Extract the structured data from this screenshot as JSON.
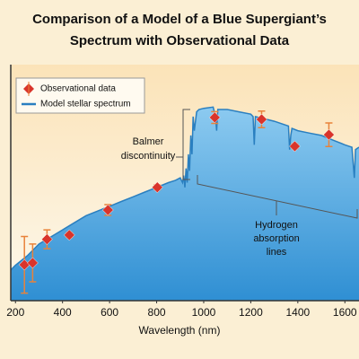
{
  "chart_data": {
    "type": "area",
    "title": [
      "Comparison of a Model of a Blue Supergiant’s",
      "Spectrum with Observational Data"
    ],
    "xlabel": "Wavelength (nm)",
    "xlim": [
      180,
      1660
    ],
    "xticks": [
      200,
      400,
      600,
      800,
      1000,
      1200,
      1400,
      1600
    ],
    "ylim": [
      0,
      100
    ],
    "series": [
      {
        "name": "Observational data",
        "type": "scatter",
        "color": "#d9342b",
        "error_color": "#e8823a",
        "x": [
          238,
          273,
          334,
          429,
          593,
          803,
          1047,
          1246,
          1387,
          1532
        ],
        "values": [
          15.2,
          16,
          26,
          27.8,
          38.4,
          48,
          77.6,
          76.8,
          65.4,
          70.3
        ],
        "errors": [
          12,
          8,
          4,
          1,
          2.3,
          1,
          2.5,
          3.5,
          1,
          5
        ]
      },
      {
        "name": "Model stellar spectrum",
        "type": "area",
        "color": "#2a7fc0",
        "x": [
          180,
          200,
          250,
          300,
          350,
          400,
          450,
          500,
          550,
          600,
          650,
          700,
          750,
          800,
          850,
          880,
          900,
          910,
          915,
          920,
          925,
          930,
          935,
          940,
          945,
          950,
          955,
          960,
          970,
          980,
          1000,
          1040,
          1050,
          1055,
          1060,
          1100,
          1150,
          1200,
          1210,
          1215,
          1220,
          1260,
          1300,
          1360,
          1365,
          1370,
          1375,
          1400,
          1450,
          1500,
          1550,
          1600,
          1630,
          1640,
          1645,
          1660
        ],
        "values": [
          13,
          15,
          19,
          24,
          27,
          30,
          33,
          36,
          38,
          40,
          42,
          44,
          46,
          48,
          50,
          51,
          52,
          50,
          53,
          48,
          56,
          50,
          62,
          55,
          70,
          62,
          78,
          72,
          80,
          81,
          81.5,
          82,
          78,
          72,
          81,
          81,
          80,
          79,
          78,
          66,
          78,
          77,
          76,
          74,
          64,
          70,
          73,
          72,
          71,
          70,
          68,
          66,
          65,
          52,
          64,
          65
        ]
      }
    ],
    "annotations": [
      [
        "Balmer",
        "discontinuity"
      ],
      [
        "Hydrogen",
        "absorption",
        "lines"
      ]
    ]
  }
}
